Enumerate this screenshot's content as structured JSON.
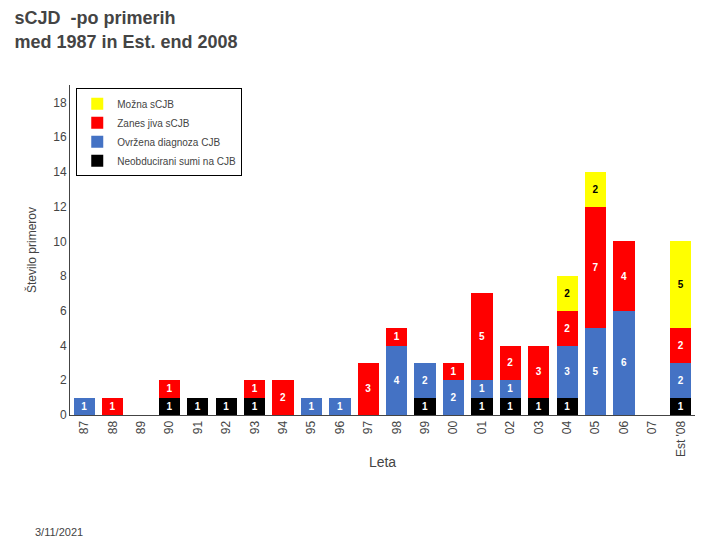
{
  "chart_data": {
    "type": "bar",
    "stacked": true,
    "title": "sCJD  -po primerih",
    "subtitle": "med 1987 in Est. end 2008",
    "x_label": "Leta",
    "y_label": "Število primerov",
    "annotations": [
      "3/11/2021"
    ],
    "categories": [
      "87",
      "88",
      "89",
      "90",
      "91",
      "92",
      "93",
      "94",
      "95",
      "96",
      "97",
      "98",
      "99",
      "00",
      "01",
      "02",
      "03",
      "04",
      "05",
      "06",
      "07",
      "Est '08"
    ],
    "series": [
      {
        "name": "Neobducirani sumi na CJB",
        "color": "#000000",
        "values": [
          0,
          0,
          0,
          1,
          1,
          1,
          1,
          0,
          0,
          0,
          0,
          0,
          1,
          0,
          1,
          1,
          1,
          1,
          0,
          0,
          0,
          1
        ]
      },
      {
        "name": "Ovržena diagnoza CJB",
        "color": "#4472C4",
        "values": [
          1,
          0,
          0,
          0,
          0,
          0,
          0,
          0,
          1,
          1,
          0,
          4,
          2,
          2,
          1,
          1,
          0,
          3,
          5,
          6,
          0,
          2
        ]
      },
      {
        "name": "Zanes jiva sCJB",
        "color": "#FF0000",
        "values": [
          0,
          1,
          0,
          1,
          0,
          0,
          1,
          2,
          0,
          0,
          3,
          1,
          0,
          1,
          5,
          2,
          3,
          2,
          7,
          4,
          0,
          2
        ]
      },
      {
        "name": "Možna sCJB",
        "color": "#FFFF00",
        "values": [
          0,
          0,
          0,
          0,
          0,
          0,
          0,
          0,
          0,
          0,
          0,
          0,
          0,
          0,
          0,
          0,
          0,
          2,
          2,
          0,
          0,
          5
        ]
      }
    ],
    "ylim": [
      0,
      19
    ],
    "yticks": [
      0,
      2,
      4,
      6,
      8,
      10,
      12,
      14,
      16,
      18
    ],
    "grid": false,
    "legend": "upper left",
    "data_labels": true
  }
}
